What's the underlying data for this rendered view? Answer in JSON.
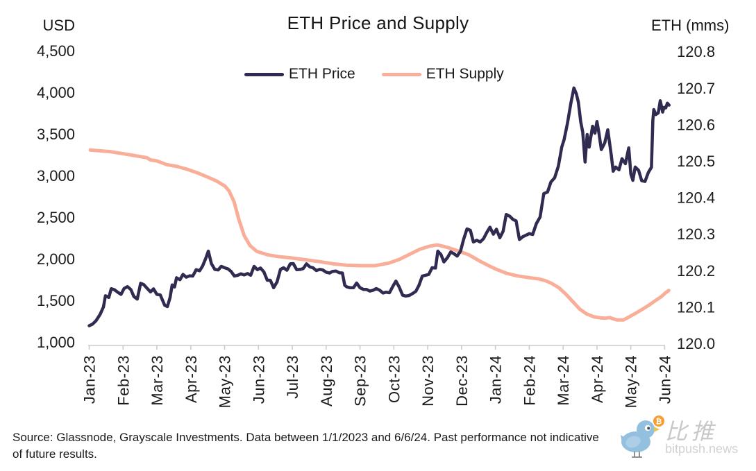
{
  "chart": {
    "title": "ETH Price and Supply",
    "left_axis_title": "USD",
    "right_axis_title": "ETH (mms)",
    "legend": [
      {
        "label": "ETH Price",
        "color": "#302B50"
      },
      {
        "label": "ETH Supply",
        "color": "#F8AE98"
      }
    ]
  },
  "chart_data": {
    "type": "line",
    "title": "ETH Price and Supply",
    "grid": false,
    "legend_position": "top-center",
    "x_axis": {
      "unit": "month",
      "start": "Jan 2023",
      "end": "Jun 2024",
      "tick_labels": [
        "Jan-23",
        "Feb-23",
        "Mar-23",
        "Apr-23",
        "May-23",
        "Jun-23",
        "Jul-23",
        "Aug-23",
        "Sep-23",
        "Oct-23",
        "Nov-23",
        "Dec-23",
        "Jan-24",
        "Feb-24",
        "Mar-24",
        "Apr-24",
        "May-24",
        "Jun-24"
      ]
    },
    "y_left": {
      "title": "USD",
      "range": [
        1000,
        4500
      ],
      "ticks": [
        4500,
        4000,
        3500,
        3000,
        2500,
        2000,
        1500,
        1000
      ],
      "tick_labels": [
        "4,500",
        "4,000",
        "3,500",
        "3,000",
        "2,500",
        "2,000",
        "1,500",
        "1,000"
      ]
    },
    "y_right": {
      "title": "ETH (mms)",
      "range": [
        120.0,
        120.8
      ],
      "ticks": [
        120.8,
        120.7,
        120.6,
        120.5,
        120.4,
        120.3,
        120.2,
        120.1,
        120.0
      ],
      "tick_labels": [
        "120.8",
        "120.7",
        "120.6",
        "120.5",
        "120.4",
        "120.3",
        "120.2",
        "120.1",
        "120.0"
      ]
    },
    "series": [
      {
        "name": "ETH Price",
        "axis": "left",
        "color": "#302B50",
        "points": [
          [
            0.0,
            1195
          ],
          [
            0.1,
            1215
          ],
          [
            0.2,
            1255
          ],
          [
            0.32,
            1330
          ],
          [
            0.42,
            1420
          ],
          [
            0.48,
            1555
          ],
          [
            0.58,
            1535
          ],
          [
            0.65,
            1640
          ],
          [
            0.74,
            1628
          ],
          [
            0.84,
            1598
          ],
          [
            0.94,
            1572
          ],
          [
            1.03,
            1642
          ],
          [
            1.13,
            1665
          ],
          [
            1.23,
            1630
          ],
          [
            1.32,
            1545
          ],
          [
            1.42,
            1515
          ],
          [
            1.52,
            1705
          ],
          [
            1.61,
            1690
          ],
          [
            1.71,
            1645
          ],
          [
            1.81,
            1602
          ],
          [
            1.9,
            1638
          ],
          [
            2.0,
            1572
          ],
          [
            2.1,
            1565
          ],
          [
            2.23,
            1442
          ],
          [
            2.31,
            1425
          ],
          [
            2.39,
            1535
          ],
          [
            2.45,
            1685
          ],
          [
            2.52,
            1660
          ],
          [
            2.58,
            1772
          ],
          [
            2.68,
            1748
          ],
          [
            2.77,
            1812
          ],
          [
            2.87,
            1778
          ],
          [
            2.97,
            1795
          ],
          [
            3.06,
            1792
          ],
          [
            3.16,
            1868
          ],
          [
            3.26,
            1855
          ],
          [
            3.35,
            1912
          ],
          [
            3.45,
            2012
          ],
          [
            3.52,
            2092
          ],
          [
            3.61,
            1942
          ],
          [
            3.71,
            1872
          ],
          [
            3.81,
            1866
          ],
          [
            3.9,
            1908
          ],
          [
            4.0,
            1892
          ],
          [
            4.1,
            1878
          ],
          [
            4.19,
            1848
          ],
          [
            4.29,
            1792
          ],
          [
            4.39,
            1802
          ],
          [
            4.48,
            1818
          ],
          [
            4.58,
            1806
          ],
          [
            4.68,
            1822
          ],
          [
            4.77,
            1802
          ],
          [
            4.87,
            1908
          ],
          [
            4.97,
            1868
          ],
          [
            5.06,
            1888
          ],
          [
            5.16,
            1842
          ],
          [
            5.26,
            1742
          ],
          [
            5.35,
            1742
          ],
          [
            5.45,
            1652
          ],
          [
            5.55,
            1722
          ],
          [
            5.65,
            1872
          ],
          [
            5.74,
            1892
          ],
          [
            5.84,
            1862
          ],
          [
            5.94,
            1938
          ],
          [
            6.03,
            1942
          ],
          [
            6.13,
            1868
          ],
          [
            6.23,
            1872
          ],
          [
            6.32,
            1882
          ],
          [
            6.42,
            1938
          ],
          [
            6.52,
            1902
          ],
          [
            6.61,
            1892
          ],
          [
            6.71,
            1858
          ],
          [
            6.81,
            1872
          ],
          [
            6.9,
            1866
          ],
          [
            7.0,
            1838
          ],
          [
            7.1,
            1828
          ],
          [
            7.19,
            1848
          ],
          [
            7.29,
            1852
          ],
          [
            7.39,
            1832
          ],
          [
            7.48,
            1828
          ],
          [
            7.55,
            1682
          ],
          [
            7.61,
            1662
          ],
          [
            7.71,
            1652
          ],
          [
            7.81,
            1652
          ],
          [
            7.9,
            1708
          ],
          [
            8.0,
            1652
          ],
          [
            8.1,
            1632
          ],
          [
            8.19,
            1632
          ],
          [
            8.29,
            1612
          ],
          [
            8.39,
            1622
          ],
          [
            8.48,
            1642
          ],
          [
            8.58,
            1622
          ],
          [
            8.68,
            1588
          ],
          [
            8.77,
            1598
          ],
          [
            8.87,
            1592
          ],
          [
            8.97,
            1668
          ],
          [
            9.06,
            1732
          ],
          [
            9.16,
            1658
          ],
          [
            9.26,
            1562
          ],
          [
            9.35,
            1552
          ],
          [
            9.45,
            1558
          ],
          [
            9.55,
            1582
          ],
          [
            9.65,
            1608
          ],
          [
            9.74,
            1678
          ],
          [
            9.84,
            1792
          ],
          [
            9.94,
            1802
          ],
          [
            10.03,
            1812
          ],
          [
            10.13,
            1892
          ],
          [
            10.23,
            1888
          ],
          [
            10.3,
            2092
          ],
          [
            10.39,
            2052
          ],
          [
            10.48,
            1962
          ],
          [
            10.58,
            2012
          ],
          [
            10.68,
            2082
          ],
          [
            10.77,
            2062
          ],
          [
            10.87,
            2032
          ],
          [
            10.97,
            2092
          ],
          [
            11.06,
            2232
          ],
          [
            11.16,
            2358
          ],
          [
            11.26,
            2342
          ],
          [
            11.35,
            2202
          ],
          [
            11.45,
            2222
          ],
          [
            11.55,
            2202
          ],
          [
            11.65,
            2242
          ],
          [
            11.74,
            2312
          ],
          [
            11.84,
            2378
          ],
          [
            11.94,
            2295
          ],
          [
            12.03,
            2355
          ],
          [
            12.13,
            2252
          ],
          [
            12.23,
            2332
          ],
          [
            12.32,
            2532
          ],
          [
            12.42,
            2512
          ],
          [
            12.52,
            2472
          ],
          [
            12.61,
            2455
          ],
          [
            12.71,
            2232
          ],
          [
            12.81,
            2265
          ],
          [
            12.9,
            2282
          ],
          [
            13.0,
            2302
          ],
          [
            13.1,
            2292
          ],
          [
            13.21,
            2422
          ],
          [
            13.32,
            2502
          ],
          [
            13.43,
            2782
          ],
          [
            13.54,
            2802
          ],
          [
            13.64,
            2922
          ],
          [
            13.75,
            2972
          ],
          [
            13.86,
            3112
          ],
          [
            13.96,
            3342
          ],
          [
            14.03,
            3432
          ],
          [
            14.13,
            3632
          ],
          [
            14.23,
            3872
          ],
          [
            14.32,
            4052
          ],
          [
            14.39,
            3982
          ],
          [
            14.45,
            3882
          ],
          [
            14.52,
            3645
          ],
          [
            14.58,
            3522
          ],
          [
            14.65,
            3162
          ],
          [
            14.71,
            3492
          ],
          [
            14.77,
            3342
          ],
          [
            14.87,
            3592
          ],
          [
            14.94,
            3508
          ],
          [
            15.0,
            3648
          ],
          [
            15.06,
            3508
          ],
          [
            15.13,
            3312
          ],
          [
            15.23,
            3392
          ],
          [
            15.32,
            3548
          ],
          [
            15.42,
            3252
          ],
          [
            15.48,
            3052
          ],
          [
            15.55,
            3102
          ],
          [
            15.65,
            3068
          ],
          [
            15.74,
            3202
          ],
          [
            15.84,
            3142
          ],
          [
            15.94,
            3332
          ],
          [
            16.0,
            3018
          ],
          [
            16.06,
            2942
          ],
          [
            16.13,
            3102
          ],
          [
            16.23,
            3062
          ],
          [
            16.32,
            2938
          ],
          [
            16.42,
            2928
          ],
          [
            16.52,
            3038
          ],
          [
            16.61,
            3098
          ],
          [
            16.65,
            3662
          ],
          [
            16.68,
            3792
          ],
          [
            16.74,
            3732
          ],
          [
            16.81,
            3752
          ],
          [
            16.87,
            3898
          ],
          [
            16.94,
            3762
          ],
          [
            16.98,
            3818
          ],
          [
            17.03,
            3812
          ],
          [
            17.08,
            3868
          ],
          [
            17.13,
            3845
          ]
        ]
      },
      {
        "name": "ETH Supply",
        "axis": "right",
        "color": "#F8AE98",
        "points": [
          [
            0.03,
            120.53
          ],
          [
            0.65,
            120.525
          ],
          [
            1.26,
            120.516
          ],
          [
            1.7,
            120.509
          ],
          [
            1.8,
            120.503
          ],
          [
            2.0,
            120.5
          ],
          [
            2.29,
            120.49
          ],
          [
            2.59,
            120.485
          ],
          [
            2.9,
            120.477
          ],
          [
            3.21,
            120.467
          ],
          [
            3.52,
            120.455
          ],
          [
            3.76,
            120.445
          ],
          [
            4.01,
            120.431
          ],
          [
            4.13,
            120.418
          ],
          [
            4.28,
            120.388
          ],
          [
            4.42,
            120.34
          ],
          [
            4.58,
            120.295
          ],
          [
            4.75,
            120.268
          ],
          [
            4.95,
            120.252
          ],
          [
            5.26,
            120.243
          ],
          [
            5.57,
            120.238
          ],
          [
            5.98,
            120.234
          ],
          [
            6.39,
            120.229
          ],
          [
            6.8,
            120.224
          ],
          [
            7.21,
            120.218
          ],
          [
            7.62,
            120.214
          ],
          [
            8.03,
            120.213
          ],
          [
            8.44,
            120.213
          ],
          [
            8.85,
            120.22
          ],
          [
            9.16,
            120.23
          ],
          [
            9.46,
            120.244
          ],
          [
            9.77,
            120.258
          ],
          [
            10.04,
            120.266
          ],
          [
            10.28,
            120.27
          ],
          [
            10.59,
            120.263
          ],
          [
            10.9,
            120.253
          ],
          [
            11.21,
            120.243
          ],
          [
            11.51,
            120.227
          ],
          [
            11.82,
            120.212
          ],
          [
            12.05,
            120.202
          ],
          [
            12.33,
            120.192
          ],
          [
            12.64,
            120.185
          ],
          [
            13.0,
            120.18
          ],
          [
            13.26,
            120.177
          ],
          [
            13.47,
            120.172
          ],
          [
            13.67,
            120.164
          ],
          [
            13.88,
            120.152
          ],
          [
            14.08,
            120.135
          ],
          [
            14.28,
            120.115
          ],
          [
            14.49,
            120.094
          ],
          [
            14.69,
            120.081
          ],
          [
            14.9,
            120.073
          ],
          [
            15.1,
            120.07
          ],
          [
            15.25,
            120.069
          ],
          [
            15.38,
            120.071
          ],
          [
            15.45,
            120.068
          ],
          [
            15.6,
            120.064
          ],
          [
            15.78,
            120.064
          ],
          [
            15.92,
            120.071
          ],
          [
            16.13,
            120.082
          ],
          [
            16.33,
            120.093
          ],
          [
            16.54,
            120.105
          ],
          [
            16.74,
            120.118
          ],
          [
            16.9,
            120.128
          ],
          [
            17.02,
            120.138
          ],
          [
            17.12,
            120.145
          ]
        ]
      }
    ]
  },
  "footer": {
    "source_line1": "Source: Glassnode, Grayscale Investments. Data between 1/1/2023 and 6/6/24. Past performance not indicative",
    "source_line2": "of future results.",
    "watermark": {
      "name_cn": "比推",
      "domain": "bitpush.news"
    }
  }
}
